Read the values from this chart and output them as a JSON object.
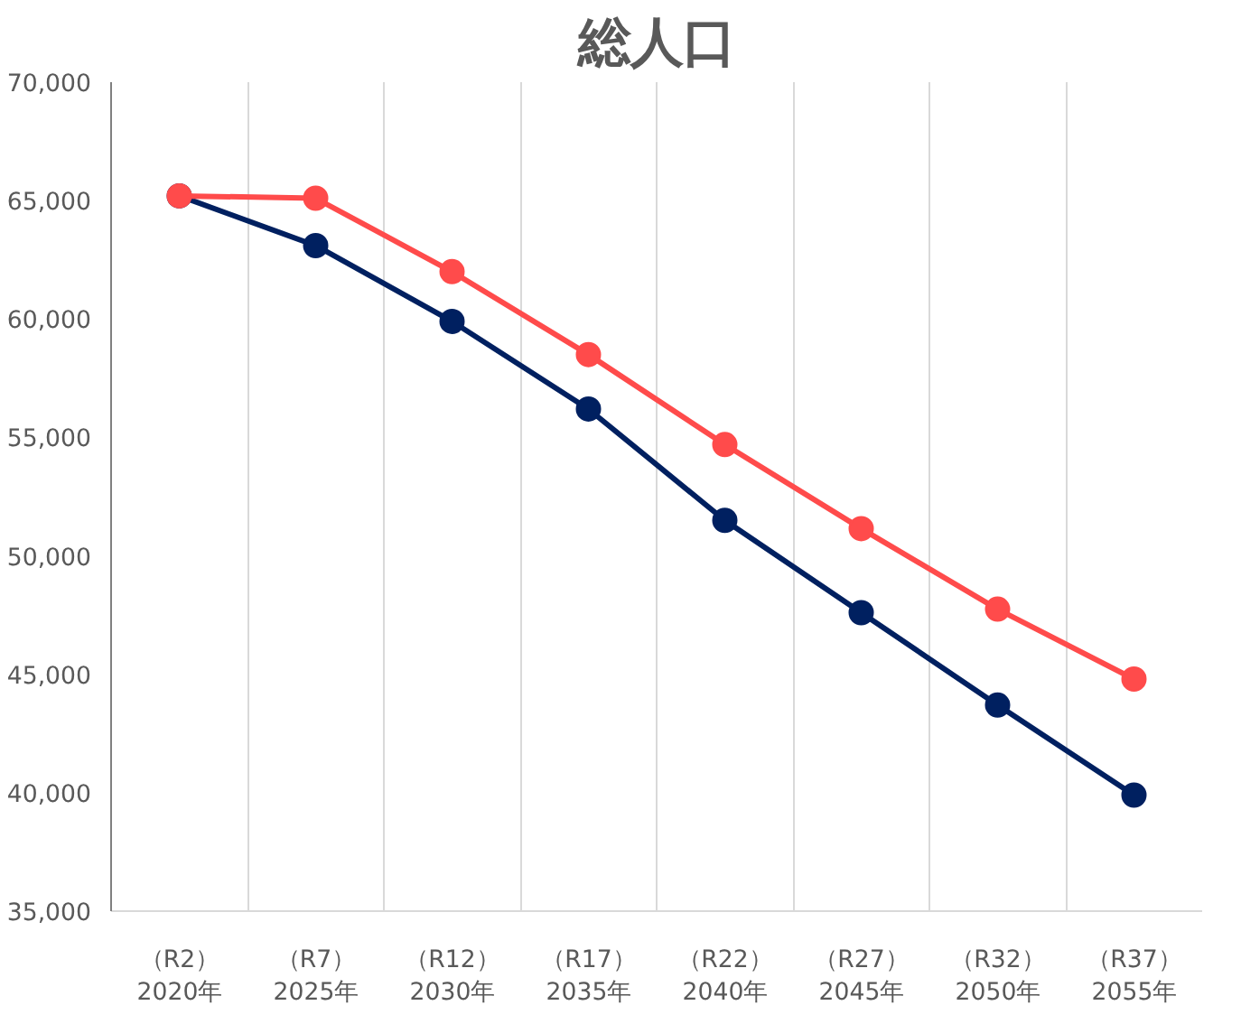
{
  "chart_data": {
    "type": "line",
    "title": "総人口",
    "categories": [
      "（R2）\n2020年",
      "（R7）\n2025年",
      "（R12）\n2030年",
      "（R17）\n2035年",
      "（R22）\n2040年",
      "（R27）\n2045年",
      "（R32）\n2050年",
      "（R37）\n2055年"
    ],
    "series": [
      {
        "color": "#ff4b4b",
        "values": [
          65200,
          65100,
          62000,
          58500,
          54700,
          51150,
          47750,
          44800
        ]
      },
      {
        "color": "#002060",
        "values": [
          65200,
          63100,
          59900,
          56200,
          51500,
          47600,
          43700,
          39900
        ]
      }
    ],
    "ylim": [
      35000,
      70000
    ],
    "yticks": [
      {
        "value": 35000,
        "label": "35,000"
      },
      {
        "value": 40000,
        "label": "40,000"
      },
      {
        "value": 45000,
        "label": "45,000"
      },
      {
        "value": 50000,
        "label": "50,000"
      },
      {
        "value": 55000,
        "label": "55,000"
      },
      {
        "value": 60000,
        "label": "60,000"
      },
      {
        "value": 65000,
        "label": "65,000"
      },
      {
        "value": 70000,
        "label": "70,000"
      }
    ],
    "grid": "x",
    "marker": "circle",
    "line_style": "solid"
  }
}
